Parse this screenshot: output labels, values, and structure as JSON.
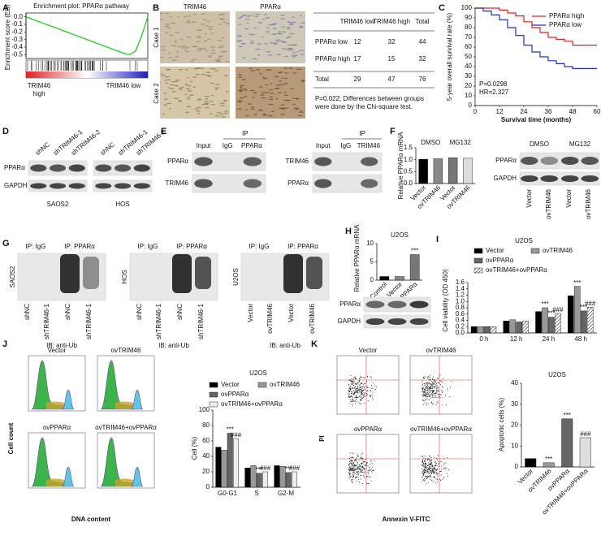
{
  "letters": [
    "A",
    "B",
    "C",
    "D",
    "E",
    "F",
    "G",
    "H",
    "I",
    "J",
    "K"
  ],
  "panel_a": {
    "title": "Enrichment plot: PPARα pathway",
    "high": [
      "TRIM46",
      "high"
    ],
    "low": "TRIM46 low"
  },
  "panel_b": {
    "columns": [
      "TRIM46",
      "PPARα"
    ],
    "cases": [
      "Case 1",
      "Case 2"
    ],
    "table": {
      "header": [
        "TRIM46 low",
        "TRIM46 high",
        "Total"
      ],
      "rows": [
        [
          "PPARα low",
          12,
          32,
          44
        ],
        [
          "PPARα high",
          17,
          15,
          32
        ],
        [
          "Total",
          29,
          47,
          76
        ]
      ]
    },
    "note": [
      "P=0.022; Differences between groups",
      "were done by the Chi-square test."
    ]
  },
  "panel_d": {
    "lanes": [
      "shNC",
      "shTRIM46-1",
      "shTRIM46-2"
    ],
    "rows": [
      "PPARα",
      "GAPDH"
    ],
    "cells": [
      "SAOS2",
      "HOS"
    ]
  },
  "panel_e": {
    "ip": "IP",
    "blots": [
      {
        "lanes": [
          "Input",
          "IgG",
          "PPARα"
        ],
        "rows": [
          "PPARα",
          "TRIM46"
        ]
      },
      {
        "lanes": [
          "Input",
          "IgG",
          "TRIM46"
        ],
        "rows": [
          "TRIM46",
          "PPARα"
        ]
      }
    ]
  },
  "panel_f": {
    "groups": [
      "DMSO",
      "MG132"
    ],
    "lanes": [
      "Vector",
      "ovTRIM46",
      "Vector",
      "ovTRIM46"
    ],
    "rows": [
      "PPARα",
      "GAPDH"
    ]
  },
  "panel_g": {
    "headers": [
      "IP: IgG",
      "IP: PPARα"
    ],
    "ib": "IB: anti-Ub",
    "blots": [
      {
        "cell": "SAOS2",
        "lanes": [
          "shNC",
          "shTRIM46-1",
          "shNC",
          "shTRIM46-1"
        ]
      },
      {
        "cell": "HOS",
        "lanes": [
          "shNC",
          "shTRIM46-1",
          "shNC",
          "shTRIM46-1"
        ]
      },
      {
        "cell": "U2OS",
        "lanes": [
          "Vector",
          "ovTRIM46",
          "Vector",
          "ovTRIM46"
        ]
      }
    ]
  },
  "panel_h": {
    "rows": [
      "PPARα",
      "GAPDH"
    ]
  },
  "panel_j": {
    "titles": [
      "Vector",
      "ovTRIM46",
      "ovPPARα",
      "ovTRIM46+ovPPARα"
    ],
    "ylabel": "Cell count",
    "xlabel": "DNA content"
  },
  "panel_k": {
    "titles": [
      "Vector",
      "ovTRIM46",
      "ovPPARα",
      "ovTRIM46+ovPPARα"
    ],
    "ylabel": "PI",
    "xlabel": "Annexin V-FITC"
  },
  "chart_data": [
    {
      "type": "line",
      "ylabel": "Enrichment score (ES)",
      "color": "#22cc22",
      "values": [
        0,
        -0.03,
        -0.06,
        -0.09,
        -0.12,
        -0.15,
        -0.18,
        -0.21,
        -0.24,
        -0.27,
        -0.3,
        -0.33,
        -0.36,
        -0.39,
        -0.42,
        -0.45,
        -0.48,
        -0.5,
        -0.45,
        -0.25,
        0
      ],
      "ylim": [
        -0.55,
        0.05
      ],
      "yticks": [
        {
          "value": 0,
          "label": "0.0"
        },
        -0.1,
        -0.2,
        -0.3,
        -0.4,
        -0.5
      ]
    },
    {
      "type": "line",
      "step": true,
      "xlabel": "Survival time (months)",
      "ylabel": "5-year overall survival rate (%)",
      "x": [
        0,
        4,
        8,
        12,
        16,
        20,
        24,
        28,
        32,
        36,
        40,
        44,
        48,
        52,
        56,
        60
      ],
      "series": [
        {
          "name": "PPARα high",
          "color": "#e02020",
          "values": [
            100,
            100,
            100,
            98,
            95,
            92,
            86,
            80,
            75,
            70,
            68,
            66,
            62,
            62,
            62,
            62
          ]
        },
        {
          "name": "PPARα low",
          "color": "#2030d0",
          "values": [
            100,
            97,
            93,
            88,
            80,
            72,
            62,
            55,
            50,
            46,
            43,
            40,
            38,
            38,
            38,
            38
          ]
        }
      ],
      "xlim": [
        0,
        60
      ],
      "xticks": [
        0,
        12,
        24,
        36,
        48,
        60
      ],
      "ylim": [
        0,
        100
      ],
      "yticks": [
        0,
        10,
        20,
        30,
        40,
        50,
        60,
        70,
        80,
        90,
        100
      ],
      "legend": "upper right",
      "annotations": [
        "P=0.0298",
        "HR=2.327"
      ]
    },
    {
      "type": "bar",
      "ylabel": "Relative PPARα mRNA",
      "groups": [
        "DMSO",
        "MG132"
      ],
      "categories": [
        "Vector",
        "ovTRIM46",
        "Vector",
        "ovTRIM46"
      ],
      "values": [
        1.02,
        1.04,
        1.08,
        1.06
      ],
      "colors": [
        "#000000",
        "#888888",
        "#777777",
        "#dddddd"
      ],
      "ylim": [
        0,
        1.5
      ],
      "yticks": [
        {
          "value": 0,
          "label": "0.0"
        },
        0.5,
        {
          "value": 1,
          "label": "1.0"
        },
        1.5
      ]
    },
    {
      "type": "bar",
      "title": "U2OS",
      "ylabel": "Relative PPARα mRNA",
      "categories": [
        "Control",
        "Vector",
        "ovPPARα"
      ],
      "values": [
        1,
        1,
        7
      ],
      "colors": [
        "#000000",
        "#888888",
        "#777777"
      ],
      "ylim": [
        0,
        10
      ],
      "yticks": [
        0,
        5,
        10
      ],
      "annotations": [
        {
          "text": "***",
          "index": 2
        }
      ]
    },
    {
      "type": "bar",
      "title": "U2OS",
      "ylabel": "Cell viability (OD 450)",
      "categories": [
        "0 h",
        "12 h",
        "24 h",
        "48 h"
      ],
      "series": [
        {
          "name": "Vector",
          "color": "#000000",
          "values": [
            0.2,
            0.38,
            0.68,
            1.18
          ]
        },
        {
          "name": "ovTRIM46",
          "color": "#999999",
          "values": [
            0.2,
            0.42,
            0.8,
            1.48
          ]
        },
        {
          "name": "ovPPARα",
          "color": "#666666",
          "values": [
            0.2,
            0.35,
            0.5,
            0.7
          ]
        },
        {
          "name": "ovTRIM46+ovPPARα",
          "color": "#ffffff",
          "hatch": true,
          "values": [
            0.2,
            0.38,
            0.62,
            0.82
          ]
        }
      ],
      "ylim": [
        0,
        1.6
      ],
      "yticks": [
        {
          "value": 0,
          "label": "0.0"
        },
        0.2,
        0.4,
        0.6,
        0.8,
        {
          "value": 1,
          "label": "1.0"
        },
        1.2,
        1.4,
        1.6
      ],
      "annotations": [
        {
          "text": "***",
          "index": 2,
          "series": 1
        },
        {
          "text": "***",
          "index": 3,
          "series": 1
        },
        {
          "text": "***",
          "index": 2,
          "series": 2
        },
        {
          "text": "***",
          "index": 3,
          "series": 2
        },
        {
          "text": "###",
          "index": 2,
          "series": 3
        },
        {
          "text": "###",
          "index": 3,
          "series": 3
        }
      ]
    },
    {
      "type": "bar",
      "title": "U2OS",
      "ylabel": "Cell (%)",
      "categories": [
        "G0-G1",
        "S",
        "G2-M"
      ],
      "series": [
        {
          "name": "Vector",
          "color": "#000000",
          "values": [
            52,
            25,
            28
          ]
        },
        {
          "name": "ovTRIM46",
          "color": "#999999",
          "values": [
            48,
            28,
            27
          ]
        },
        {
          "name": "ovPPARα",
          "color": "#666666",
          "values": [
            70,
            18,
            19
          ]
        },
        {
          "name": "ovTRIM46+ovPPARα",
          "color": "#eeeeee",
          "values": [
            63,
            20,
            20
          ]
        }
      ],
      "ylim": [
        0,
        100
      ],
      "yticks": [
        0,
        20,
        40,
        60,
        80,
        100
      ],
      "annotations": [
        {
          "text": "***",
          "index": 0,
          "series": 2
        },
        {
          "text": "###",
          "index": 0,
          "series": 3
        },
        {
          "text": "***",
          "index": 1,
          "series": 2
        },
        {
          "text": "###",
          "index": 1,
          "series": 3
        },
        {
          "text": "***",
          "index": 2,
          "series": 2
        },
        {
          "text": "###",
          "index": 2,
          "series": 3
        }
      ]
    },
    {
      "type": "bar",
      "title": "U2OS",
      "ylabel": "Apoptotic cells (%)",
      "categories": [
        "Vector",
        "ovTRIM46",
        "ovPPARα",
        "ovTRIM46+ovPPARα"
      ],
      "values": [
        4,
        2,
        23,
        14
      ],
      "colors": [
        "#000000",
        "#999999",
        "#666666",
        "#dddddd"
      ],
      "ylim": [
        0,
        40
      ],
      "yticks": [
        0,
        10,
        20,
        30,
        40
      ],
      "annotations": [
        {
          "text": "***",
          "index": 1
        },
        {
          "text": "***",
          "index": 2
        },
        {
          "text": "###",
          "index": 3
        }
      ]
    }
  ]
}
